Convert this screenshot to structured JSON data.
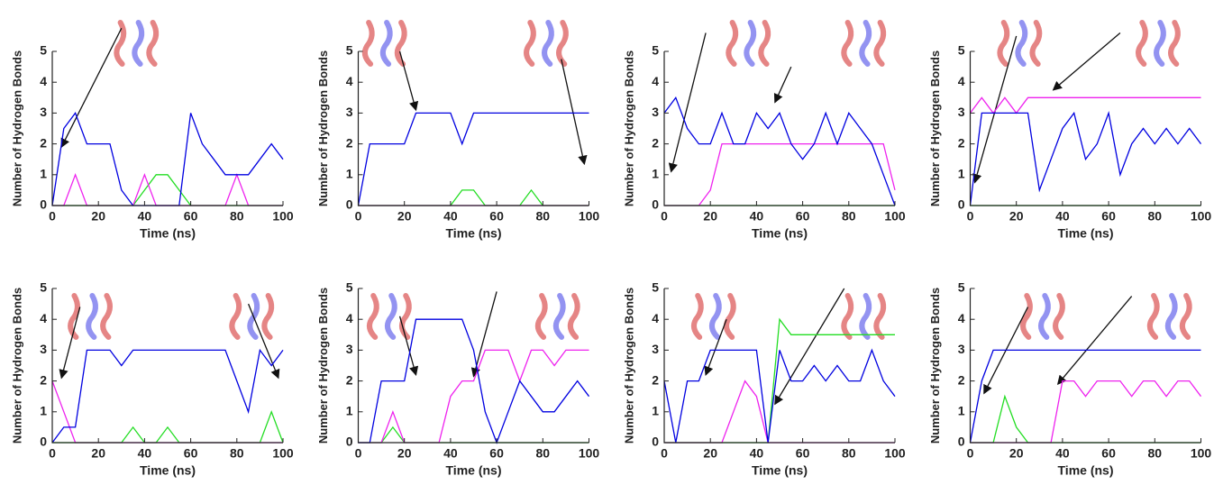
{
  "chart_data": [
    {
      "type": "line",
      "x_label": "Time (ns)",
      "y_label": "Number of Hydrogen Bonds",
      "xlim": [
        0,
        100
      ],
      "ylim": [
        0,
        5
      ],
      "xticks": [
        0,
        20,
        40,
        60,
        80,
        100
      ],
      "yticks": [
        0,
        1,
        2,
        3,
        4,
        5
      ],
      "x": [
        0,
        5,
        10,
        15,
        20,
        25,
        30,
        35,
        40,
        45,
        50,
        55,
        60,
        65,
        70,
        75,
        80,
        85,
        90,
        95,
        100
      ],
      "series": [
        {
          "color": "#22dd22",
          "values": [
            0,
            0,
            0,
            0,
            0,
            0,
            0,
            0,
            0.5,
            1,
            1,
            0.5,
            0,
            0,
            0,
            0,
            0,
            0,
            0,
            0,
            0
          ]
        },
        {
          "color": "#ee22ee",
          "values": [
            0,
            0,
            1,
            0,
            0,
            0,
            0,
            0,
            1,
            0,
            0,
            0,
            0,
            0,
            0,
            0,
            1,
            0,
            0,
            0,
            0
          ]
        },
        {
          "color": "#0000e0",
          "values": [
            0,
            2.5,
            3,
            2,
            2,
            2,
            0.5,
            0,
            0,
            0,
            0,
            0,
            3,
            2,
            1.5,
            1,
            1,
            1,
            1.5,
            2,
            1.5
          ]
        }
      ]
    },
    {
      "type": "line",
      "x_label": "Time (ns)",
      "y_label": "Number of Hydrogen Bonds",
      "xlim": [
        0,
        100
      ],
      "ylim": [
        0,
        5
      ],
      "xticks": [
        0,
        20,
        40,
        60,
        80,
        100
      ],
      "yticks": [
        0,
        1,
        2,
        3,
        4,
        5
      ],
      "x": [
        0,
        5,
        10,
        15,
        20,
        25,
        30,
        35,
        40,
        45,
        50,
        55,
        60,
        65,
        70,
        75,
        80,
        85,
        90,
        95,
        100
      ],
      "series": [
        {
          "color": "#22dd22",
          "values": [
            0,
            0,
            0,
            0,
            0,
            0,
            0,
            0,
            0,
            0.5,
            0.5,
            0,
            0,
            0,
            0,
            0.5,
            0,
            0,
            0,
            0,
            0
          ]
        },
        {
          "color": "#ee22ee",
          "values": [
            0,
            0,
            0,
            0,
            0,
            0,
            0,
            0,
            0,
            0,
            0,
            0,
            0,
            0,
            0,
            0,
            0,
            0,
            0,
            0,
            0
          ]
        },
        {
          "color": "#0000e0",
          "values": [
            0,
            2,
            2,
            2,
            2,
            3,
            3,
            3,
            3,
            2,
            3,
            3,
            3,
            3,
            3,
            3,
            3,
            3,
            3,
            3,
            3
          ]
        }
      ]
    },
    {
      "type": "line",
      "x_label": "Time (ns)",
      "y_label": "Number of Hydrogen Bonds",
      "xlim": [
        0,
        100
      ],
      "ylim": [
        0,
        5
      ],
      "xticks": [
        0,
        20,
        40,
        60,
        80,
        100
      ],
      "yticks": [
        0,
        1,
        2,
        3,
        4,
        5
      ],
      "x": [
        0,
        5,
        10,
        15,
        20,
        25,
        30,
        35,
        40,
        45,
        50,
        55,
        60,
        65,
        70,
        75,
        80,
        85,
        90,
        95,
        100
      ],
      "series": [
        {
          "color": "#22dd22",
          "values": [
            0,
            0,
            0,
            0,
            0,
            0,
            0,
            0,
            0,
            0,
            0,
            0,
            0,
            0,
            0,
            0,
            0,
            0,
            0,
            0,
            0
          ]
        },
        {
          "color": "#ee22ee",
          "values": [
            0,
            0,
            0,
            0,
            0.5,
            2,
            2,
            2,
            2,
            2,
            2,
            2,
            2,
            2,
            2,
            2,
            2,
            2,
            2,
            2,
            0.5
          ]
        },
        {
          "color": "#0000e0",
          "values": [
            3,
            3.5,
            2.5,
            2,
            2,
            3,
            2,
            2,
            3,
            2.5,
            3,
            2,
            1.5,
            2,
            3,
            2,
            3,
            2.5,
            2,
            1,
            0
          ]
        }
      ]
    },
    {
      "type": "line",
      "x_label": "Time (ns)",
      "y_label": "Number of Hydrogen Bonds",
      "xlim": [
        0,
        100
      ],
      "ylim": [
        0,
        5
      ],
      "xticks": [
        0,
        20,
        40,
        60,
        80,
        100
      ],
      "yticks": [
        0,
        1,
        2,
        3,
        4,
        5
      ],
      "x": [
        0,
        5,
        10,
        15,
        20,
        25,
        30,
        35,
        40,
        45,
        50,
        55,
        60,
        65,
        70,
        75,
        80,
        85,
        90,
        95,
        100
      ],
      "series": [
        {
          "color": "#22dd22",
          "values": [
            0,
            0,
            0,
            0,
            0,
            0,
            0,
            0,
            0,
            0,
            0,
            0,
            0,
            0,
            0,
            0,
            0,
            0,
            0,
            0,
            0
          ]
        },
        {
          "color": "#ee22ee",
          "values": [
            3,
            3.5,
            3,
            3.5,
            3,
            3.5,
            3.5,
            3.5,
            3.5,
            3.5,
            3.5,
            3.5,
            3.5,
            3.5,
            3.5,
            3.5,
            3.5,
            3.5,
            3.5,
            3.5,
            3.5
          ]
        },
        {
          "color": "#0000e0",
          "values": [
            0,
            3,
            3,
            3,
            3,
            3,
            0.5,
            1.5,
            2.5,
            3,
            1.5,
            2,
            3,
            1,
            2,
            2.5,
            2,
            2.5,
            2,
            2.5,
            2
          ]
        }
      ]
    },
    {
      "type": "line",
      "x_label": "Time (ns)",
      "y_label": "Number of Hydrogen Bonds",
      "xlim": [
        0,
        100
      ],
      "ylim": [
        0,
        5
      ],
      "xticks": [
        0,
        20,
        40,
        60,
        80,
        100
      ],
      "yticks": [
        0,
        1,
        2,
        3,
        4,
        5
      ],
      "x": [
        0,
        5,
        10,
        15,
        20,
        25,
        30,
        35,
        40,
        45,
        50,
        55,
        60,
        65,
        70,
        75,
        80,
        85,
        90,
        95,
        100
      ],
      "series": [
        {
          "color": "#22dd22",
          "values": [
            0,
            0,
            0,
            0,
            0,
            0,
            0,
            0.5,
            0,
            0,
            0.5,
            0,
            0,
            0,
            0,
            0,
            0,
            0,
            0,
            1,
            0
          ]
        },
        {
          "color": "#ee22ee",
          "values": [
            2,
            1,
            0,
            0,
            0,
            0,
            0,
            0,
            0,
            0,
            0,
            0,
            0,
            0,
            0,
            0,
            0,
            0,
            0,
            0,
            0
          ]
        },
        {
          "color": "#0000e0",
          "values": [
            0,
            0.5,
            0.5,
            3,
            3,
            3,
            2.5,
            3,
            3,
            3,
            3,
            3,
            3,
            3,
            3,
            3,
            2,
            1,
            3,
            2.5,
            3
          ]
        }
      ]
    },
    {
      "type": "line",
      "x_label": "Time (ns)",
      "y_label": "Number of Hydrogen Bonds",
      "xlim": [
        0,
        100
      ],
      "ylim": [
        0,
        5
      ],
      "xticks": [
        0,
        20,
        40,
        60,
        80,
        100
      ],
      "yticks": [
        0,
        1,
        2,
        3,
        4,
        5
      ],
      "x": [
        0,
        5,
        10,
        15,
        20,
        25,
        30,
        35,
        40,
        45,
        50,
        55,
        60,
        65,
        70,
        75,
        80,
        85,
        90,
        95,
        100
      ],
      "series": [
        {
          "color": "#22dd22",
          "values": [
            0,
            0,
            0,
            0.5,
            0,
            0,
            0,
            0,
            0,
            0,
            0,
            0,
            0,
            0,
            0,
            0,
            0,
            0,
            0,
            0,
            0
          ]
        },
        {
          "color": "#ee22ee",
          "values": [
            0,
            0,
            0,
            1,
            0,
            0,
            0,
            0,
            1.5,
            2,
            2,
            3,
            3,
            3,
            2,
            3,
            3,
            2.5,
            3,
            3,
            3
          ]
        },
        {
          "color": "#0000e0",
          "values": [
            0,
            0,
            2,
            2,
            2,
            4,
            4,
            4,
            4,
            4,
            3,
            1,
            0,
            1,
            2,
            1.5,
            1,
            1,
            1.5,
            2,
            1.5
          ]
        }
      ]
    },
    {
      "type": "line",
      "x_label": "Time (ns)",
      "y_label": "Number of Hydrogen Bonds",
      "xlim": [
        0,
        100
      ],
      "ylim": [
        0,
        5
      ],
      "xticks": [
        0,
        20,
        40,
        60,
        80,
        100
      ],
      "yticks": [
        0,
        1,
        2,
        3,
        4,
        5
      ],
      "x": [
        0,
        5,
        10,
        15,
        20,
        25,
        30,
        35,
        40,
        45,
        50,
        55,
        60,
        65,
        70,
        75,
        80,
        85,
        90,
        95,
        100
      ],
      "series": [
        {
          "color": "#22dd22",
          "values": [
            0,
            0,
            0,
            0,
            0,
            0,
            0,
            0,
            0,
            0,
            4,
            3.5,
            3.5,
            3.5,
            3.5,
            3.5,
            3.5,
            3.5,
            3.5,
            3.5,
            3.5
          ]
        },
        {
          "color": "#ee22ee",
          "values": [
            0,
            0,
            0,
            0,
            0,
            0,
            1,
            2,
            1.5,
            0,
            0,
            0,
            0,
            0,
            0,
            0,
            0,
            0,
            0,
            0,
            0
          ]
        },
        {
          "color": "#0000e0",
          "values": [
            2,
            0,
            2,
            2,
            3,
            3,
            3,
            3,
            3,
            0,
            3,
            2,
            2,
            2.5,
            2,
            2.5,
            2,
            2,
            3,
            2,
            1.5
          ]
        }
      ]
    },
    {
      "type": "line",
      "x_label": "Time (ns)",
      "y_label": "Number of Hydrogen Bonds",
      "xlim": [
        0,
        100
      ],
      "ylim": [
        0,
        5
      ],
      "xticks": [
        0,
        20,
        40,
        60,
        80,
        100
      ],
      "yticks": [
        0,
        1,
        2,
        3,
        4,
        5
      ],
      "x": [
        0,
        5,
        10,
        15,
        20,
        25,
        30,
        35,
        40,
        45,
        50,
        55,
        60,
        65,
        70,
        75,
        80,
        85,
        90,
        95,
        100
      ],
      "series": [
        {
          "color": "#22dd22",
          "values": [
            0,
            0,
            0,
            1.5,
            0.5,
            0,
            0,
            0,
            0,
            0,
            0,
            0,
            0,
            0,
            0,
            0,
            0,
            0,
            0,
            0,
            0
          ]
        },
        {
          "color": "#ee22ee",
          "values": [
            0,
            0,
            0,
            0,
            0,
            0,
            0,
            0,
            2,
            2,
            1.5,
            2,
            2,
            2,
            1.5,
            2,
            2,
            1.5,
            2,
            2,
            1.5
          ]
        },
        {
          "color": "#0000e0",
          "values": [
            0,
            2,
            3,
            3,
            3,
            3,
            3,
            3,
            3,
            3,
            3,
            3,
            3,
            3,
            3,
            3,
            3,
            3,
            3,
            3,
            3
          ]
        }
      ]
    }
  ]
}
